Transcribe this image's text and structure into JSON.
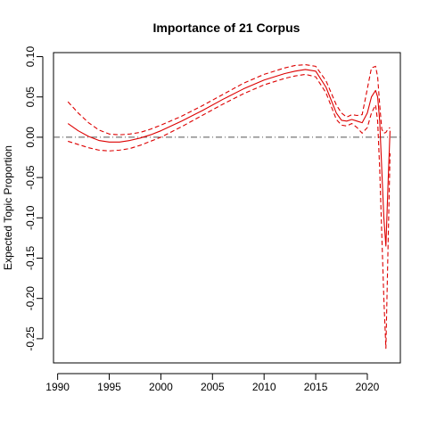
{
  "chart_data": {
    "type": "line",
    "title": "Importance of 21 Corpus",
    "xlabel": "",
    "ylabel": "Expected Topic Proportion",
    "xlim": [
      1989.6,
      2023.2
    ],
    "ylim": [
      -0.28,
      0.105
    ],
    "xticks": [
      1990,
      1995,
      2000,
      2005,
      2010,
      2015,
      2020
    ],
    "yticks": [
      0.1,
      0.05,
      0.0,
      -0.05,
      -0.1,
      -0.15,
      -0.2,
      -0.25
    ],
    "ytick_labels": [
      "0.10",
      "0.05",
      "0.00",
      "-0.05",
      "-0.10",
      "-0.15",
      "-0.20",
      "-0.25"
    ],
    "reference_line": {
      "y": 0.0,
      "style": "dash-dot",
      "color": "#555555"
    },
    "grid": false,
    "colors": {
      "series": "#dd0000"
    },
    "series": [
      {
        "role": "estimate",
        "style": "solid",
        "x": [
          1991,
          1992,
          1993,
          1994,
          1995,
          1996,
          1997,
          1998,
          1999,
          2000,
          2002,
          2004,
          2006,
          2008,
          2010,
          2012,
          2013,
          2014,
          2015,
          2016,
          2017,
          2017.5,
          2018,
          2018.5,
          2019,
          2019.5,
          2020,
          2020.4,
          2020.8,
          2021,
          2021.2,
          2021.4,
          2021.6,
          2021.8,
          2022,
          2022.2
        ],
        "y": [
          0.017,
          0.008,
          0.001,
          -0.004,
          -0.006,
          -0.006,
          -0.004,
          -0.001,
          0.003,
          0.008,
          0.02,
          0.033,
          0.047,
          0.06,
          0.071,
          0.079,
          0.082,
          0.084,
          0.082,
          0.062,
          0.03,
          0.021,
          0.02,
          0.022,
          0.02,
          0.018,
          0.03,
          0.05,
          0.058,
          0.05,
          0.02,
          -0.04,
          -0.1,
          -0.135,
          -0.06,
          0.008
        ]
      },
      {
        "role": "upper-ci",
        "style": "dashed",
        "x": [
          1991,
          1992,
          1993,
          1994,
          1995,
          1996,
          1997,
          1998,
          1999,
          2000,
          2002,
          2004,
          2006,
          2008,
          2010,
          2012,
          2013,
          2014,
          2015,
          2016,
          2017,
          2017.5,
          2018,
          2018.5,
          2019,
          2019.5,
          2020,
          2020.4,
          2020.8,
          2021,
          2021.2,
          2021.4,
          2021.6,
          2021.8,
          2022,
          2022.2
        ],
        "y": [
          0.044,
          0.03,
          0.018,
          0.009,
          0.004,
          0.003,
          0.004,
          0.006,
          0.01,
          0.015,
          0.026,
          0.039,
          0.053,
          0.067,
          0.078,
          0.086,
          0.089,
          0.09,
          0.088,
          0.07,
          0.04,
          0.03,
          0.025,
          0.028,
          0.027,
          0.028,
          0.06,
          0.086,
          0.088,
          0.075,
          0.04,
          0.01,
          0.005,
          0.006,
          0.01,
          0.012
        ]
      },
      {
        "role": "lower-ci",
        "style": "dashed",
        "x": [
          1991,
          1992,
          1993,
          1994,
          1995,
          1996,
          1997,
          1998,
          1999,
          2000,
          2002,
          2004,
          2006,
          2008,
          2010,
          2012,
          2013,
          2014,
          2015,
          2016,
          2017,
          2017.5,
          2018,
          2018.5,
          2019,
          2019.5,
          2020,
          2020.4,
          2020.8,
          2021,
          2021.2,
          2021.4,
          2021.6,
          2021.8,
          2022,
          2022.2
        ],
        "y": [
          -0.005,
          -0.009,
          -0.013,
          -0.016,
          -0.017,
          -0.016,
          -0.014,
          -0.01,
          -0.005,
          0.0,
          0.013,
          0.027,
          0.041,
          0.054,
          0.065,
          0.073,
          0.076,
          0.078,
          0.075,
          0.055,
          0.022,
          0.015,
          0.014,
          0.017,
          0.012,
          0.005,
          0.012,
          0.03,
          0.04,
          0.02,
          -0.04,
          -0.12,
          -0.2,
          -0.262,
          -0.14,
          -0.02
        ]
      }
    ]
  }
}
